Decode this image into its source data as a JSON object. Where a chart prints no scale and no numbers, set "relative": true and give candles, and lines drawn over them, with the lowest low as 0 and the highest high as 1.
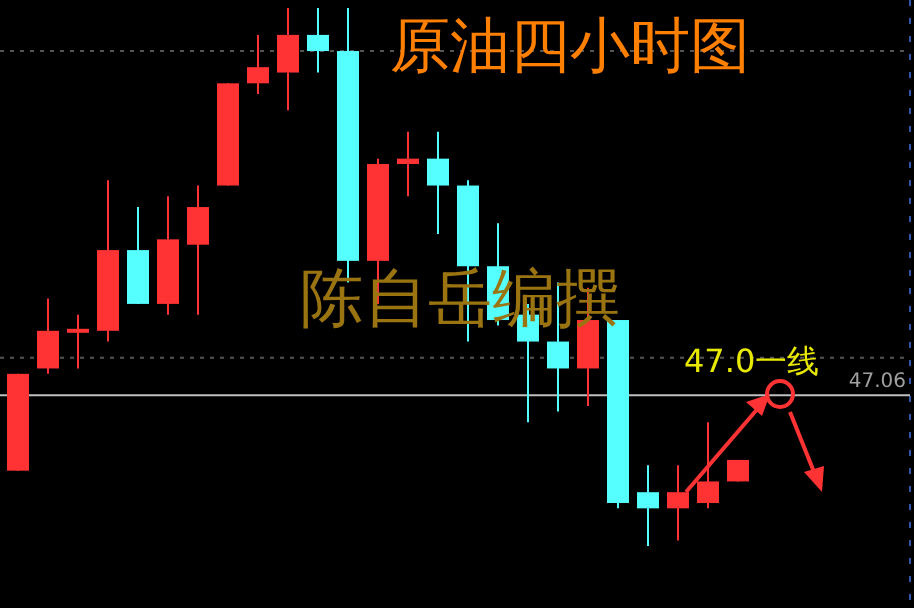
{
  "chart_data": {
    "type": "candlestick",
    "title": "原油四小时图",
    "relative": true,
    "categories": [
      null,
      null,
      null,
      null,
      null,
      null,
      null,
      null,
      null,
      null,
      null,
      null,
      null,
      null,
      null,
      null,
      null,
      null,
      null,
      null,
      null,
      null,
      null,
      null,
      null
    ],
    "ohlc": [
      [
        0.14,
        0.32,
        0.14,
        0.32
      ],
      [
        0.33,
        0.46,
        0.32,
        0.4
      ],
      [
        0.4,
        0.43,
        0.33,
        0.4
      ],
      [
        0.4,
        0.68,
        0.38,
        0.55
      ],
      [
        0.55,
        0.63,
        0.45,
        0.45
      ],
      [
        0.45,
        0.65,
        0.43,
        0.57
      ],
      [
        0.56,
        0.67,
        0.43,
        0.63
      ],
      [
        0.67,
        0.86,
        0.67,
        0.86
      ],
      [
        0.86,
        0.95,
        0.84,
        0.89
      ],
      [
        0.88,
        1.0,
        0.81,
        0.95
      ],
      [
        0.95,
        1.0,
        0.88,
        0.92
      ],
      [
        0.92,
        1.0,
        0.49,
        0.53
      ],
      [
        0.53,
        0.72,
        0.45,
        0.71
      ],
      [
        0.71,
        0.77,
        0.65,
        0.72
      ],
      [
        0.72,
        0.77,
        0.58,
        0.67
      ],
      [
        0.67,
        0.68,
        0.38,
        0.52
      ],
      [
        0.52,
        0.6,
        0.41,
        0.42
      ],
      [
        0.43,
        0.45,
        0.23,
        0.38
      ],
      [
        0.38,
        0.49,
        0.25,
        0.33
      ],
      [
        0.33,
        0.48,
        0.26,
        0.42
      ],
      [
        0.42,
        0.42,
        0.07,
        0.08
      ],
      [
        0.1,
        0.15,
        0.0,
        0.07
      ],
      [
        0.07,
        0.15,
        0.01,
        0.1
      ],
      [
        0.08,
        0.23,
        0.07,
        0.12
      ],
      [
        0.12,
        0.16,
        0.12,
        0.16
      ]
    ],
    "colors": [
      "#ff3333",
      "#ff3333",
      "#ff3333",
      "#ff3333",
      "#55ffff",
      "#ff3333",
      "#ff3333",
      "#ff3333",
      "#ff3333",
      "#ff3333",
      "#55ffff",
      "#55ffff",
      "#ff3333",
      "#ff3333",
      "#55ffff",
      "#55ffff",
      "#55ffff",
      "#55ffff",
      "#55ffff",
      "#ff3333",
      "#55ffff",
      "#55ffff",
      "#ff3333",
      "#ff3333",
      "#ff3333"
    ],
    "ref_lines": [
      {
        "axis": "y",
        "value": 0.28,
        "color": "#c0c0c0",
        "line_style": "solid"
      },
      {
        "axis": "y",
        "value": 0.92,
        "color": "#555555",
        "line_style": "dotted"
      },
      {
        "axis": "y",
        "value": 0.35,
        "color": "#555555",
        "line_style": "dotted"
      }
    ],
    "annotations": [
      "陈自岳编撰",
      "47.0一线",
      "47.06"
    ]
  }
}
